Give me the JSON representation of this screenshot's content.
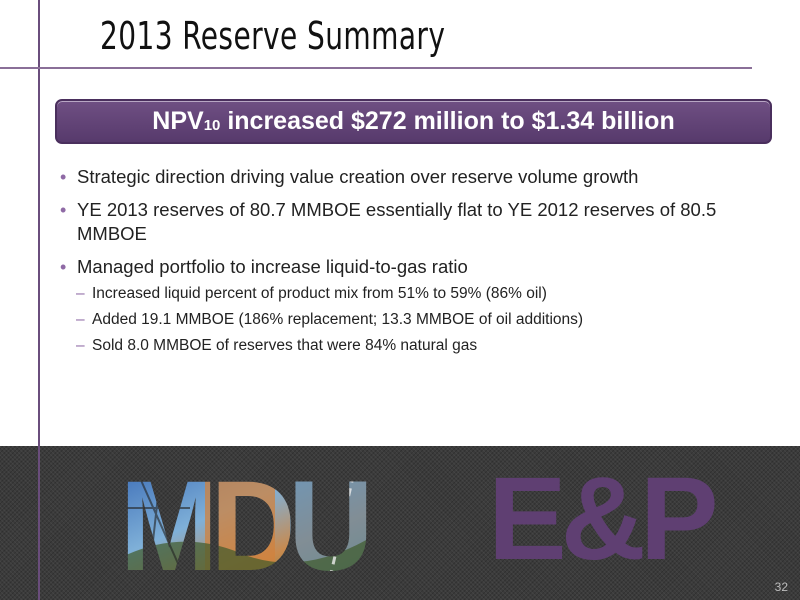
{
  "slide": {
    "title": "2013 Reserve Summary",
    "banner": {
      "prefix": "NPV",
      "subscript": "10",
      "suffix": " increased $272 million to $1.34 billion"
    },
    "bullets": [
      "Strategic direction driving value creation over reserve volume growth",
      "YE 2013 reserves of 80.7 MMBOE essentially flat to YE 2012 reserves of 80.5 MMBOE",
      "Managed portfolio to increase liquid-to-gas ratio"
    ],
    "sub_bullets": [
      "Increased liquid percent of product mix from 51% to 59% (86% oil)",
      "Added 19.1 MMBOE (186% replacement; 13.3 MMBOE of oil additions)",
      "Sold 8.0 MMBOE of reserves that were 84% natural gas"
    ],
    "footer": {
      "logo_text": "MDU",
      "logo_suffix": "E&P",
      "page_number": "32"
    },
    "colors": {
      "accent": "#5f3f72",
      "banner": "#6a4b7e",
      "bullet": "#8f6aa5",
      "footer_bg": "#3b3b3b"
    }
  }
}
